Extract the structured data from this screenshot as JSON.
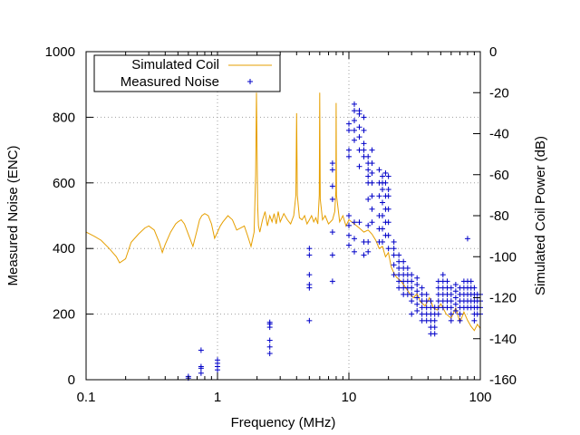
{
  "chart_data": {
    "type": "line",
    "title": "",
    "xlabel": "Frequency (MHz)",
    "ylabel": "Measured Noise (ENC)",
    "y2label": "Simulated Coil Power (dB)",
    "xscale": "log",
    "xlim": [
      0.1,
      100
    ],
    "ylim": [
      0,
      1000
    ],
    "y2lim": [
      -160,
      0
    ],
    "grid": true,
    "legend_position": "top-left",
    "x_ticks": [
      {
        "value": 0.1,
        "label": "0.1"
      },
      {
        "value": 1,
        "label": "1"
      },
      {
        "value": 10,
        "label": "10"
      },
      {
        "value": 100,
        "label": "100"
      }
    ],
    "y_ticks": [
      {
        "value": 0,
        "label": "0"
      },
      {
        "value": 200,
        "label": "200"
      },
      {
        "value": 400,
        "label": "400"
      },
      {
        "value": 600,
        "label": "600"
      },
      {
        "value": 800,
        "label": "800"
      },
      {
        "value": 1000,
        "label": "1000"
      }
    ],
    "y2_ticks": [
      {
        "value": 0,
        "label": "0"
      },
      {
        "value": -20,
        "label": "-20"
      },
      {
        "value": -40,
        "label": "-40"
      },
      {
        "value": -60,
        "label": "-60"
      },
      {
        "value": -80,
        "label": "-80"
      },
      {
        "value": -100,
        "label": "-100"
      },
      {
        "value": -120,
        "label": "-120"
      },
      {
        "value": -140,
        "label": "-140"
      },
      {
        "value": -160,
        "label": "-160"
      }
    ],
    "series": [
      {
        "name": "Simulated Coil",
        "axis": "y2",
        "style": "line",
        "color": "#e69f00",
        "x": [
          0.1,
          0.115,
          0.13,
          0.15,
          0.17,
          0.18,
          0.2,
          0.22,
          0.25,
          0.28,
          0.3,
          0.33,
          0.36,
          0.38,
          0.4,
          0.44,
          0.48,
          0.5,
          0.53,
          0.56,
          0.6,
          0.65,
          0.7,
          0.73,
          0.76,
          0.8,
          0.85,
          0.9,
          0.95,
          1.0,
          1.05,
          1.1,
          1.2,
          1.3,
          1.4,
          1.5,
          1.6,
          1.7,
          1.8,
          1.9,
          1.95,
          1.98,
          2.0,
          2.02,
          2.05,
          2.1,
          2.2,
          2.3,
          2.4,
          2.5,
          2.6,
          2.7,
          2.8,
          2.9,
          3.0,
          3.2,
          3.4,
          3.6,
          3.8,
          3.95,
          4.0,
          4.05,
          4.2,
          4.4,
          4.6,
          4.8,
          5.0,
          5.2,
          5.4,
          5.6,
          5.8,
          5.95,
          6.0,
          6.05,
          6.3,
          6.6,
          7.0,
          7.5,
          7.8,
          7.95,
          8.0,
          8.05,
          8.5,
          9.0,
          9.5,
          10.0,
          11.0,
          12.0,
          13.0,
          14.0,
          15.0,
          16.0,
          17.0,
          18.0,
          19.0,
          20.0,
          21.0,
          22.0,
          23.0,
          25.0,
          27.0,
          29.0,
          31.0,
          33.0,
          35.0,
          38.0,
          41.0,
          44.0,
          47.0,
          50.0,
          55.0,
          60.0,
          65.0,
          70.0,
          75.0,
          80.0,
          85.0,
          90.0,
          95.0,
          100.0
        ],
        "y": [
          -88,
          -90,
          -92,
          -96,
          -100,
          -103,
          -101,
          -93,
          -89,
          -86,
          -85,
          -87,
          -93,
          -98,
          -94,
          -88,
          -84,
          -83,
          -82,
          -84,
          -89,
          -95,
          -87,
          -82,
          -80,
          -79,
          -80,
          -84,
          -91,
          -88,
          -85,
          -83,
          -80,
          -82,
          -87,
          -86,
          -85,
          -90,
          -95,
          -88,
          -60,
          -20,
          -45,
          -75,
          -85,
          -88,
          -82,
          -78,
          -85,
          -80,
          -83,
          -79,
          -84,
          -78,
          -83,
          -79,
          -82,
          -84,
          -80,
          -70,
          -30,
          -70,
          -81,
          -82,
          -80,
          -84,
          -82,
          -80,
          -83,
          -81,
          -84,
          -70,
          -20,
          -72,
          -82,
          -80,
          -84,
          -82,
          -78,
          -68,
          -25,
          -70,
          -83,
          -80,
          -85,
          -82,
          -84,
          -86,
          -88,
          -87,
          -89,
          -92,
          -96,
          -95,
          -100,
          -98,
          -105,
          -108,
          -110,
          -112,
          -115,
          -118,
          -120,
          -118,
          -122,
          -124,
          -120,
          -125,
          -126,
          -123,
          -128,
          -130,
          -125,
          -132,
          -127,
          -131,
          -134,
          -136,
          -133,
          -135
        ]
      },
      {
        "name": "Measured Noise",
        "axis": "y",
        "style": "points",
        "marker": "+",
        "color": "#0000c8",
        "x": [
          0.6,
          0.6,
          0.75,
          0.75,
          0.75,
          0.75,
          1.0,
          1.0,
          1.0,
          1.0,
          2.5,
          2.5,
          2.5,
          2.5,
          2.5,
          2.5,
          5.0,
          5.0,
          5.0,
          5.0,
          5.0,
          5.0,
          7.5,
          7.5,
          7.5,
          7.5,
          7.5,
          7.5,
          7.5,
          10.0,
          10.0,
          10.0,
          10.0,
          10.0,
          10.0,
          10.0,
          10.0,
          11.0,
          11.0,
          11.0,
          11.0,
          11.0,
          11.0,
          11.0,
          11.0,
          12.0,
          12.0,
          12.0,
          12.0,
          12.0,
          12.0,
          12.0,
          13.0,
          13.0,
          13.0,
          13.0,
          13.0,
          13.0,
          13.0,
          14.0,
          14.0,
          14.0,
          14.0,
          14.0,
          14.0,
          14.0,
          14.0,
          14.0,
          15.0,
          15.0,
          15.0,
          15.0,
          15.0,
          15.0,
          15.0,
          17.0,
          17.0,
          17.0,
          17.0,
          17.0,
          17.0,
          18.0,
          18.0,
          18.0,
          18.0,
          18.0,
          18.0,
          18.0,
          19.0,
          19.0,
          19.0,
          19.0,
          19.0,
          19.0,
          20.0,
          20.0,
          20.0,
          20.0,
          20.0,
          20.0,
          20.0,
          22.0,
          22.0,
          22.0,
          22.0,
          22.0,
          24.0,
          24.0,
          24.0,
          24.0,
          24.0,
          24.0,
          26.0,
          26.0,
          26.0,
          26.0,
          26.0,
          26.0,
          28.0,
          28.0,
          28.0,
          28.0,
          28.0,
          30.0,
          30.0,
          30.0,
          30.0,
          30.0,
          30.0,
          33.0,
          33.0,
          33.0,
          33.0,
          33.0,
          33.0,
          36.0,
          36.0,
          36.0,
          36.0,
          36.0,
          36.0,
          39.0,
          39.0,
          39.0,
          39.0,
          39.0,
          42.0,
          42.0,
          42.0,
          42.0,
          42.0,
          42.0,
          45.0,
          45.0,
          45.0,
          45.0,
          45.0,
          48.0,
          48.0,
          48.0,
          48.0,
          48.0,
          48.0,
          52.0,
          52.0,
          52.0,
          52.0,
          52.0,
          52.0,
          56.0,
          56.0,
          56.0,
          56.0,
          56.0,
          60.0,
          60.0,
          60.0,
          60.0,
          60.0,
          60.0,
          65.0,
          65.0,
          65.0,
          65.0,
          65.0,
          70.0,
          70.0,
          70.0,
          70.0,
          70.0,
          70.0,
          75.0,
          75.0,
          75.0,
          75.0,
          75.0,
          80.0,
          80.0,
          80.0,
          80.0,
          80.0,
          80.0,
          85.0,
          85.0,
          85.0,
          85.0,
          85.0,
          90.0,
          90.0,
          90.0,
          90.0,
          90.0,
          90.0,
          95.0,
          95.0,
          95.0,
          95.0,
          100.0,
          100.0,
          100.0,
          100.0
        ],
        "y": [
          5,
          10,
          90,
          40,
          35,
          20,
          60,
          50,
          40,
          30,
          170,
          160,
          120,
          100,
          80,
          175,
          400,
          380,
          320,
          290,
          280,
          180,
          660,
          640,
          590,
          550,
          300,
          450,
          380,
          780,
          760,
          700,
          680,
          500,
          470,
          440,
          410,
          840,
          820,
          790,
          760,
          730,
          480,
          430,
          390,
          820,
          810,
          770,
          740,
          700,
          650,
          480,
          800,
          760,
          720,
          700,
          680,
          420,
          380,
          680,
          660,
          640,
          620,
          600,
          550,
          470,
          420,
          390,
          700,
          660,
          630,
          600,
          560,
          520,
          480,
          640,
          600,
          560,
          500,
          460,
          420,
          620,
          600,
          580,
          540,
          500,
          460,
          420,
          630,
          600,
          560,
          520,
          480,
          440,
          620,
          580,
          560,
          520,
          480,
          440,
          400,
          420,
          400,
          380,
          350,
          320,
          380,
          360,
          340,
          320,
          300,
          280,
          360,
          340,
          320,
          300,
          280,
          260,
          340,
          320,
          300,
          280,
          260,
          320,
          300,
          280,
          260,
          240,
          200,
          310,
          290,
          270,
          250,
          230,
          210,
          280,
          260,
          240,
          220,
          200,
          180,
          260,
          240,
          220,
          200,
          180,
          240,
          220,
          200,
          180,
          160,
          140,
          220,
          200,
          180,
          160,
          140,
          300,
          280,
          260,
          240,
          220,
          200,
          320,
          300,
          280,
          260,
          240,
          220,
          300,
          280,
          260,
          240,
          220,
          280,
          260,
          240,
          220,
          200,
          180,
          290,
          270,
          250,
          230,
          210,
          280,
          260,
          240,
          220,
          200,
          180,
          300,
          280,
          260,
          240,
          220,
          430,
          300,
          280,
          260,
          240,
          220,
          300,
          280,
          260,
          240,
          220,
          280,
          260,
          240,
          220,
          200,
          180,
          260,
          240,
          220,
          200,
          260,
          240,
          220,
          200
        ]
      }
    ]
  }
}
